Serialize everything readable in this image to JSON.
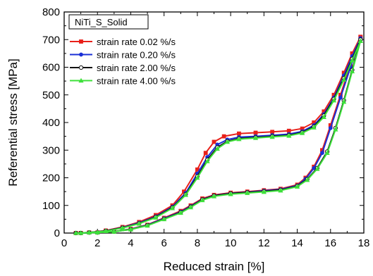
{
  "chart_data": {
    "type": "line",
    "xlabel": "Reduced strain [%]",
    "ylabel": "Referential stress [MPa]",
    "xlim": [
      0,
      18
    ],
    "ylim": [
      0,
      800
    ],
    "xticks": [
      "0",
      "2",
      "4",
      "6",
      "8",
      "10",
      "12",
      "14",
      "16",
      "18"
    ],
    "yticks": [
      "0",
      "100",
      "200",
      "300",
      "400",
      "500",
      "600",
      "700",
      "800"
    ],
    "legend_title": "NiTi_S_Solid",
    "legend_position": "top-left",
    "grid": false,
    "series": [
      {
        "name": "strain rate 0.02 %/s",
        "color": "#e8201a",
        "marker": "square",
        "loading": [
          [
            0.7,
            0
          ],
          [
            1.5,
            2
          ],
          [
            2.5,
            9
          ],
          [
            3.5,
            22
          ],
          [
            4.5,
            40
          ],
          [
            5.5,
            65
          ],
          [
            6.5,
            100
          ],
          [
            7.2,
            150
          ],
          [
            8,
            230
          ],
          [
            8.5,
            290
          ],
          [
            9,
            330
          ],
          [
            9.6,
            350
          ],
          [
            10.5,
            360
          ],
          [
            11.5,
            363
          ],
          [
            12.5,
            366
          ],
          [
            13.5,
            370
          ],
          [
            14.3,
            378
          ],
          [
            15,
            400
          ],
          [
            15.6,
            440
          ],
          [
            16.2,
            500
          ],
          [
            16.8,
            580
          ],
          [
            17.3,
            650
          ],
          [
            17.8,
            710
          ]
        ],
        "unloading": [
          [
            17.8,
            710
          ],
          [
            17.2,
            610
          ],
          [
            16.6,
            500
          ],
          [
            16,
            390
          ],
          [
            15.5,
            300
          ],
          [
            15,
            240
          ],
          [
            14.5,
            200
          ],
          [
            14,
            175
          ],
          [
            13,
            160
          ],
          [
            12,
            155
          ],
          [
            11,
            150
          ],
          [
            10,
            146
          ],
          [
            9,
            138
          ],
          [
            8.3,
            125
          ],
          [
            7.6,
            100
          ],
          [
            7,
            80
          ],
          [
            6,
            55
          ],
          [
            5,
            30
          ],
          [
            4,
            15
          ],
          [
            3,
            5
          ],
          [
            2,
            2
          ],
          [
            1,
            0
          ]
        ]
      },
      {
        "name": "strain rate 0.20 %/s",
        "color": "#1a2fd6",
        "marker": "circle",
        "loading": [
          [
            0.7,
            0
          ],
          [
            1.5,
            2
          ],
          [
            2.5,
            8
          ],
          [
            3.5,
            20
          ],
          [
            4.5,
            37
          ],
          [
            5.5,
            60
          ],
          [
            6.5,
            95
          ],
          [
            7.3,
            145
          ],
          [
            8,
            215
          ],
          [
            8.6,
            275
          ],
          [
            9.2,
            320
          ],
          [
            9.8,
            338
          ],
          [
            10.5,
            347
          ],
          [
            11.5,
            350
          ],
          [
            12.5,
            354
          ],
          [
            13.5,
            358
          ],
          [
            14.3,
            368
          ],
          [
            15,
            390
          ],
          [
            15.6,
            430
          ],
          [
            16.2,
            490
          ],
          [
            16.8,
            570
          ],
          [
            17.3,
            640
          ],
          [
            17.8,
            705
          ]
        ],
        "unloading": [
          [
            17.8,
            705
          ],
          [
            17.2,
            600
          ],
          [
            16.6,
            490
          ],
          [
            16,
            380
          ],
          [
            15.5,
            290
          ],
          [
            15,
            235
          ],
          [
            14.5,
            196
          ],
          [
            14,
            172
          ],
          [
            13,
            158
          ],
          [
            12,
            153
          ],
          [
            11,
            148
          ],
          [
            10,
            144
          ],
          [
            9,
            136
          ],
          [
            8.3,
            122
          ],
          [
            7.6,
            97
          ],
          [
            7,
            77
          ],
          [
            6,
            53
          ],
          [
            5,
            29
          ],
          [
            4,
            14
          ],
          [
            3,
            5
          ],
          [
            2,
            2
          ],
          [
            1,
            0
          ]
        ]
      },
      {
        "name": "strain rate 2.00 %/s",
        "color": "#111111",
        "marker": "open-circle",
        "loading": [
          [
            0.7,
            0
          ],
          [
            1.5,
            2
          ],
          [
            2.5,
            8
          ],
          [
            3.5,
            19
          ],
          [
            4.5,
            35
          ],
          [
            5.5,
            58
          ],
          [
            6.5,
            92
          ],
          [
            7.3,
            140
          ],
          [
            8,
            205
          ],
          [
            8.6,
            265
          ],
          [
            9.2,
            310
          ],
          [
            9.8,
            332
          ],
          [
            10.5,
            342
          ],
          [
            11.5,
            346
          ],
          [
            12.5,
            350
          ],
          [
            13.5,
            354
          ],
          [
            14.3,
            364
          ],
          [
            15,
            385
          ],
          [
            15.6,
            425
          ],
          [
            16.2,
            485
          ],
          [
            16.8,
            560
          ],
          [
            17.3,
            630
          ],
          [
            17.8,
            700
          ]
        ],
        "unloading": [
          [
            17.8,
            700
          ],
          [
            17.3,
            590
          ],
          [
            16.8,
            480
          ],
          [
            16.3,
            380
          ],
          [
            15.8,
            295
          ],
          [
            15.2,
            235
          ],
          [
            14.6,
            195
          ],
          [
            14,
            170
          ],
          [
            13,
            156
          ],
          [
            12,
            151
          ],
          [
            11,
            147
          ],
          [
            10,
            143
          ],
          [
            9,
            135
          ],
          [
            8.3,
            121
          ],
          [
            7.6,
            95
          ],
          [
            7,
            75
          ],
          [
            6,
            51
          ],
          [
            5,
            28
          ],
          [
            4,
            13
          ],
          [
            3,
            5
          ],
          [
            2,
            2
          ],
          [
            1,
            0
          ]
        ]
      },
      {
        "name": "strain rate 4.00 %/s",
        "color": "#3de03a",
        "marker": "triangle",
        "loading": [
          [
            0.7,
            0
          ],
          [
            1.5,
            2
          ],
          [
            2.5,
            7
          ],
          [
            3.5,
            18
          ],
          [
            4.5,
            34
          ],
          [
            5.5,
            56
          ],
          [
            6.5,
            90
          ],
          [
            7.3,
            138
          ],
          [
            8,
            200
          ],
          [
            8.6,
            260
          ],
          [
            9.2,
            305
          ],
          [
            9.8,
            330
          ],
          [
            10.5,
            340
          ],
          [
            11.5,
            344
          ],
          [
            12.5,
            348
          ],
          [
            13.5,
            352
          ],
          [
            14.3,
            362
          ],
          [
            15,
            382
          ],
          [
            15.6,
            420
          ],
          [
            16.2,
            480
          ],
          [
            16.8,
            555
          ],
          [
            17.3,
            625
          ],
          [
            17.8,
            695
          ]
        ],
        "unloading": [
          [
            17.8,
            695
          ],
          [
            17.3,
            585
          ],
          [
            16.8,
            475
          ],
          [
            16.3,
            375
          ],
          [
            15.8,
            290
          ],
          [
            15.2,
            232
          ],
          [
            14.6,
            192
          ],
          [
            14,
            168
          ],
          [
            13,
            154
          ],
          [
            12,
            149
          ],
          [
            11,
            145
          ],
          [
            10,
            141
          ],
          [
            9,
            133
          ],
          [
            8.3,
            119
          ],
          [
            7.6,
            93
          ],
          [
            7,
            73
          ],
          [
            6,
            50
          ],
          [
            5,
            27
          ],
          [
            4,
            13
          ],
          [
            3,
            5
          ],
          [
            2,
            2
          ],
          [
            1,
            0
          ]
        ]
      }
    ]
  }
}
